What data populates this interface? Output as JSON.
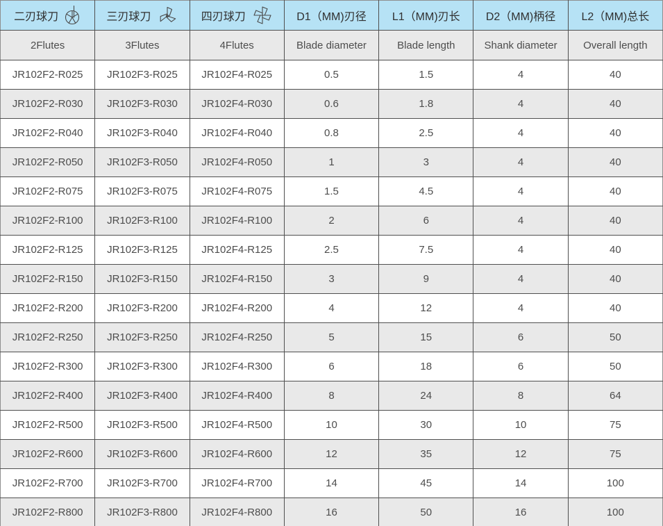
{
  "table": {
    "header_cn": [
      {
        "label": "二刃球刀",
        "icon": "two-flute-icon"
      },
      {
        "label": "三刃球刀",
        "icon": "three-flute-icon"
      },
      {
        "label": "四刃球刀",
        "icon": "four-flute-icon"
      },
      {
        "label": "D1（MM)刃径"
      },
      {
        "label": "L1（MM)刃长"
      },
      {
        "label": "D2（MM)柄径"
      },
      {
        "label": "L2（MM)总长"
      }
    ],
    "header_en": [
      "2Flutes",
      "3Flutes",
      "4Flutes",
      "Blade diameter",
      "Blade length",
      "Shank diameter",
      "Overall length"
    ],
    "rows": [
      [
        "JR102F2-R025",
        "JR102F3-R025",
        "JR102F4-R025",
        "0.5",
        "1.5",
        "4",
        "40"
      ],
      [
        "JR102F2-R030",
        "JR102F3-R030",
        "JR102F4-R030",
        "0.6",
        "1.8",
        "4",
        "40"
      ],
      [
        "JR102F2-R040",
        "JR102F3-R040",
        "JR102F4-R040",
        "0.8",
        "2.5",
        "4",
        "40"
      ],
      [
        "JR102F2-R050",
        "JR102F3-R050",
        "JR102F4-R050",
        "1",
        "3",
        "4",
        "40"
      ],
      [
        "JR102F2-R075",
        "JR102F3-R075",
        "JR102F4-R075",
        "1.5",
        "4.5",
        "4",
        "40"
      ],
      [
        "JR102F2-R100",
        "JR102F3-R100",
        "JR102F4-R100",
        "2",
        "6",
        "4",
        "40"
      ],
      [
        "JR102F2-R125",
        "JR102F3-R125",
        "JR102F4-R125",
        "2.5",
        "7.5",
        "4",
        "40"
      ],
      [
        "JR102F2-R150",
        "JR102F3-R150",
        "JR102F4-R150",
        "3",
        "9",
        "4",
        "40"
      ],
      [
        "JR102F2-R200",
        "JR102F3-R200",
        "JR102F4-R200",
        "4",
        "12",
        "4",
        "40"
      ],
      [
        "JR102F2-R250",
        "JR102F3-R250",
        "JR102F4-R250",
        "5",
        "15",
        "6",
        "50"
      ],
      [
        "JR102F2-R300",
        "JR102F3-R300",
        "JR102F4-R300",
        "6",
        "18",
        "6",
        "50"
      ],
      [
        "JR102F2-R400",
        "JR102F3-R400",
        "JR102F4-R400",
        "8",
        "24",
        "8",
        "64"
      ],
      [
        "JR102F2-R500",
        "JR102F3-R500",
        "JR102F4-R500",
        "10",
        "30",
        "10",
        "75"
      ],
      [
        "JR102F2-R600",
        "JR102F3-R600",
        "JR102F4-R600",
        "12",
        "35",
        "12",
        "75"
      ],
      [
        "JR102F2-R700",
        "JR102F3-R700",
        "JR102F4-R700",
        "14",
        "45",
        "14",
        "100"
      ],
      [
        "JR102F2-R800",
        "JR102F3-R800",
        "JR102F4-R800",
        "16",
        "50",
        "16",
        "100"
      ]
    ]
  },
  "colors": {
    "header_bg": "#b6e2f5",
    "subheader_bg": "#e9e9e9",
    "alt_row_bg": "#e9e9e9",
    "row_bg": "#ffffff",
    "grid_line": "#4f4f4f",
    "outer_border": "#8f8f8f",
    "text": "#4d4d4d",
    "header_text": "#303030"
  }
}
